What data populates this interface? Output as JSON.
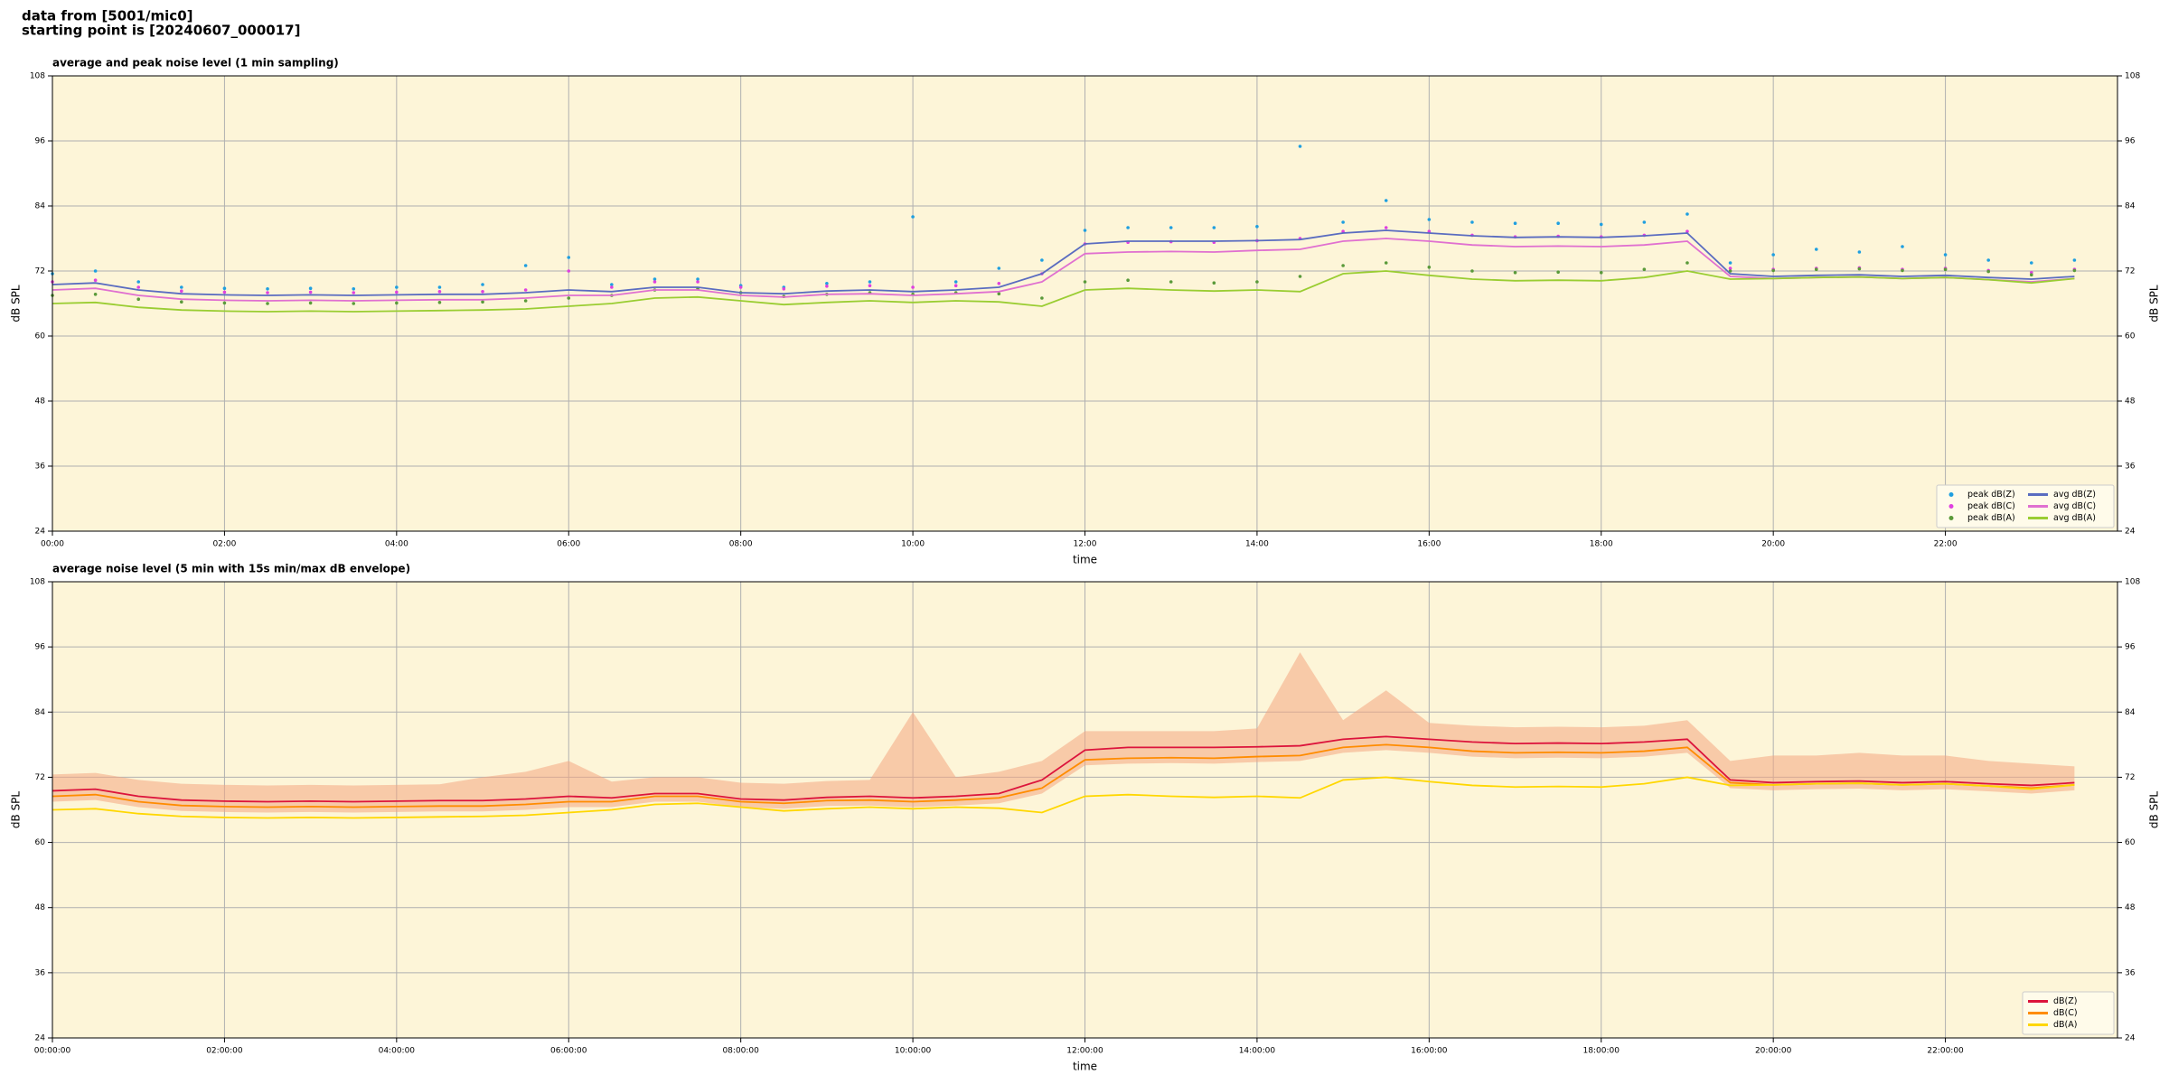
{
  "header": {
    "source": "data from [5001/mic0]",
    "start": "starting point is [20240607_000017]"
  },
  "chart_data": [
    {
      "type": "line",
      "title": "average and peak noise level (1 min sampling)",
      "xlabel": "time",
      "ylabel": "dB SPL",
      "xlim": [
        0,
        24
      ],
      "ylim": [
        24,
        108
      ],
      "xticks": [
        {
          "value": 0,
          "label": "00:00"
        },
        {
          "value": 2,
          "label": "02:00"
        },
        {
          "value": 4,
          "label": "04:00"
        },
        {
          "value": 6,
          "label": "06:00"
        },
        {
          "value": 8,
          "label": "08:00"
        },
        {
          "value": 10,
          "label": "10:00"
        },
        {
          "value": 12,
          "label": "12:00"
        },
        {
          "value": 14,
          "label": "14:00"
        },
        {
          "value": 16,
          "label": "16:00"
        },
        {
          "value": 18,
          "label": "18:00"
        },
        {
          "value": 20,
          "label": "20:00"
        },
        {
          "value": 22,
          "label": "22:00"
        }
      ],
      "yticks": [
        24,
        36,
        48,
        60,
        72,
        84,
        96,
        108
      ],
      "grid": true,
      "legend": "lower right",
      "legend_columns": 2,
      "background": "#fdf5d8",
      "x": [
        0,
        0.5,
        1,
        1.5,
        2,
        2.5,
        3,
        3.5,
        4,
        4.5,
        5,
        5.5,
        6,
        6.5,
        7,
        7.5,
        8,
        8.5,
        9,
        9.5,
        10,
        10.5,
        11,
        11.5,
        12,
        12.5,
        13,
        13.5,
        14,
        14.5,
        15,
        15.5,
        16,
        16.5,
        17,
        17.5,
        18,
        18.5,
        19,
        19.5,
        20,
        20.5,
        21,
        21.5,
        22,
        22.5,
        23,
        23.5
      ],
      "series": [
        {
          "name": "peak dB(Z)",
          "color": "#1f9fe0",
          "mark": "dot",
          "values": [
            71.5,
            72,
            70,
            69,
            68.8,
            68.7,
            68.8,
            68.7,
            69,
            69,
            69.5,
            73,
            74.5,
            69.5,
            70.5,
            70.5,
            69.3,
            69,
            69.7,
            70,
            82,
            70,
            72.5,
            74,
            79.5,
            80,
            80,
            80,
            80.2,
            95,
            81,
            85,
            81.5,
            81,
            80.8,
            80.8,
            80.6,
            81,
            82.5,
            73.5,
            75,
            76,
            75.5,
            76.5,
            75,
            74,
            73.5,
            74
          ]
        },
        {
          "name": "peak dB(C)",
          "color": "#e040e0",
          "mark": "dot",
          "values": [
            70,
            70.3,
            69,
            68.3,
            68.1,
            68,
            68.1,
            68,
            68.1,
            68.2,
            68.2,
            68.5,
            72,
            69,
            70,
            70,
            69,
            68.7,
            69.2,
            69.3,
            69,
            69.3,
            69.7,
            71.5,
            77,
            77.3,
            77.4,
            77.3,
            77.6,
            78,
            79.3,
            80,
            79.3,
            78.6,
            78.3,
            78.4,
            78.3,
            78.6,
            79.3,
            72.5,
            72.3,
            72.5,
            72.6,
            72.3,
            72.5,
            72.1,
            71.7,
            72.3
          ]
        },
        {
          "name": "peak dB(A)",
          "color": "#5a9a3a",
          "mark": "dot",
          "values": [
            67.5,
            67.7,
            66.8,
            66.3,
            66.1,
            66,
            66.1,
            66,
            66.1,
            66.2,
            66.3,
            66.5,
            67,
            67.5,
            68.5,
            68.7,
            68,
            67.3,
            67.7,
            68,
            67.7,
            68,
            67.8,
            67,
            70,
            70.3,
            70,
            69.8,
            70,
            71,
            73,
            73.5,
            72.7,
            72,
            71.7,
            71.8,
            71.7,
            72.3,
            73.5,
            72,
            72.1,
            72.3,
            72.4,
            72.1,
            72.3,
            71.9,
            71.3,
            72.1
          ]
        },
        {
          "name": "avg dB(Z)",
          "color": "#5a6cc0",
          "mark": "line",
          "values": [
            69.5,
            69.8,
            68.5,
            67.8,
            67.6,
            67.5,
            67.6,
            67.5,
            67.6,
            67.7,
            67.7,
            68,
            68.5,
            68.2,
            69,
            69,
            68,
            67.8,
            68.3,
            68.5,
            68.2,
            68.5,
            69,
            71.5,
            77,
            77.5,
            77.5,
            77.5,
            77.6,
            77.8,
            79,
            79.5,
            79,
            78.5,
            78.2,
            78.3,
            78.2,
            78.5,
            79,
            71.5,
            71,
            71.2,
            71.3,
            71,
            71.2,
            70.8,
            70.5,
            71
          ]
        },
        {
          "name": "avg dB(C)",
          "color": "#e070d0",
          "mark": "line",
          "values": [
            68.5,
            68.8,
            67.5,
            66.8,
            66.6,
            66.5,
            66.6,
            66.5,
            66.6,
            66.7,
            66.7,
            67,
            67.5,
            67.5,
            68.5,
            68.5,
            67.5,
            67.2,
            67.7,
            67.8,
            67.5,
            67.8,
            68.2,
            70,
            75.2,
            75.5,
            75.6,
            75.5,
            75.8,
            76,
            77.5,
            78,
            77.5,
            76.8,
            76.5,
            76.6,
            76.5,
            76.8,
            77.5,
            71,
            70.6,
            70.8,
            70.9,
            70.6,
            70.8,
            70.4,
            70,
            70.6
          ]
        },
        {
          "name": "avg dB(A)",
          "color": "#9acd32",
          "mark": "line",
          "values": [
            66,
            66.2,
            65.3,
            64.8,
            64.6,
            64.5,
            64.6,
            64.5,
            64.6,
            64.7,
            64.8,
            65,
            65.5,
            66,
            67,
            67.2,
            66.5,
            65.8,
            66.2,
            66.5,
            66.2,
            66.5,
            66.3,
            65.5,
            68.5,
            68.8,
            68.5,
            68.3,
            68.5,
            68.2,
            71.5,
            72,
            71.2,
            70.5,
            70.2,
            70.3,
            70.2,
            70.8,
            72,
            70.5,
            70.6,
            70.8,
            70.9,
            70.6,
            70.8,
            70.4,
            69.8,
            70.6
          ]
        }
      ]
    },
    {
      "type": "line",
      "title": "average noise level (5 min with 15s min/max dB envelope)",
      "xlabel": "time",
      "ylabel": "dB SPL",
      "xlim": [
        0,
        24
      ],
      "ylim": [
        24,
        108
      ],
      "xticks": [
        {
          "value": 0,
          "label": "00:00:00"
        },
        {
          "value": 2,
          "label": "02:00:00"
        },
        {
          "value": 4,
          "label": "04:00:00"
        },
        {
          "value": 6,
          "label": "06:00:00"
        },
        {
          "value": 8,
          "label": "08:00:00"
        },
        {
          "value": 10,
          "label": "10:00:00"
        },
        {
          "value": 12,
          "label": "12:00:00"
        },
        {
          "value": 14,
          "label": "14:00:00"
        },
        {
          "value": 16,
          "label": "16:00:00"
        },
        {
          "value": 18,
          "label": "18:00:00"
        },
        {
          "value": 20,
          "label": "20:00:00"
        },
        {
          "value": 22,
          "label": "22:00:00"
        }
      ],
      "yticks": [
        24,
        36,
        48,
        60,
        72,
        84,
        96,
        108
      ],
      "grid": true,
      "legend": "lower right",
      "legend_columns": 1,
      "background": "#fdf5d8",
      "x": [
        0,
        0.5,
        1,
        1.5,
        2,
        2.5,
        3,
        3.5,
        4,
        4.5,
        5,
        5.5,
        6,
        6.5,
        7,
        7.5,
        8,
        8.5,
        9,
        9.5,
        10,
        10.5,
        11,
        11.5,
        12,
        12.5,
        13,
        13.5,
        14,
        14.5,
        15,
        15.5,
        16,
        16.5,
        17,
        17.5,
        18,
        18.5,
        19,
        19.5,
        20,
        20.5,
        21,
        21.5,
        22,
        22.5,
        23,
        23.5
      ],
      "band": {
        "color": "#f4a582",
        "upper": [
          72.5,
          72.8,
          71.5,
          70.8,
          70.6,
          70.5,
          70.6,
          70.5,
          70.6,
          70.7,
          72,
          73,
          75,
          71.2,
          72,
          72,
          71,
          70.8,
          71.3,
          71.5,
          84,
          72,
          73,
          75,
          80.5,
          80.5,
          80.5,
          80.5,
          81,
          95,
          82.5,
          88,
          82,
          81.5,
          81.2,
          81.3,
          81.2,
          81.5,
          82.5,
          75,
          76,
          76,
          76.5,
          76,
          76,
          75,
          74.5,
          74
        ],
        "lower": [
          67.5,
          67.8,
          66.5,
          65.8,
          65.6,
          65.5,
          65.6,
          65.5,
          65.6,
          65.7,
          65.7,
          66,
          66.5,
          66.5,
          67.5,
          67.5,
          66.5,
          66.2,
          66.7,
          66.8,
          66.5,
          66.8,
          67.2,
          69,
          74.2,
          74.5,
          74.6,
          74.5,
          74.8,
          75,
          76.5,
          77,
          76.5,
          75.8,
          75.5,
          75.6,
          75.5,
          75.8,
          76.5,
          70,
          69.6,
          69.8,
          69.9,
          69.6,
          69.8,
          69.4,
          69,
          69.6
        ]
      },
      "series": [
        {
          "name": "dB(Z)",
          "color": "#dc143c",
          "mark": "line",
          "values": [
            69.5,
            69.8,
            68.5,
            67.8,
            67.6,
            67.5,
            67.6,
            67.5,
            67.6,
            67.7,
            67.7,
            68,
            68.5,
            68.2,
            69,
            69,
            68,
            67.8,
            68.3,
            68.5,
            68.2,
            68.5,
            69,
            71.5,
            77,
            77.5,
            77.5,
            77.5,
            77.6,
            77.8,
            79,
            79.5,
            79,
            78.5,
            78.2,
            78.3,
            78.2,
            78.5,
            79,
            71.5,
            71,
            71.2,
            71.3,
            71,
            71.2,
            70.8,
            70.5,
            71
          ]
        },
        {
          "name": "dB(C)",
          "color": "#ff8c00",
          "mark": "line",
          "values": [
            68.5,
            68.8,
            67.5,
            66.8,
            66.6,
            66.5,
            66.6,
            66.5,
            66.6,
            66.7,
            66.7,
            67,
            67.5,
            67.5,
            68.5,
            68.5,
            67.5,
            67.2,
            67.7,
            67.8,
            67.5,
            67.8,
            68.2,
            70,
            75.2,
            75.5,
            75.6,
            75.5,
            75.8,
            76,
            77.5,
            78,
            77.5,
            76.8,
            76.5,
            76.6,
            76.5,
            76.8,
            77.5,
            71,
            70.6,
            70.8,
            70.9,
            70.6,
            70.8,
            70.4,
            70,
            70.6
          ]
        },
        {
          "name": "dB(A)",
          "color": "#ffd700",
          "mark": "line",
          "values": [
            66,
            66.2,
            65.3,
            64.8,
            64.6,
            64.5,
            64.6,
            64.5,
            64.6,
            64.7,
            64.8,
            65,
            65.5,
            66,
            67,
            67.2,
            66.5,
            65.8,
            66.2,
            66.5,
            66.2,
            66.5,
            66.3,
            65.5,
            68.5,
            68.8,
            68.5,
            68.3,
            68.5,
            68.2,
            71.5,
            72,
            71.2,
            70.5,
            70.2,
            70.3,
            70.2,
            70.8,
            72,
            70.5,
            70.6,
            70.8,
            70.9,
            70.6,
            70.8,
            70.4,
            69.8,
            70.6
          ]
        }
      ]
    }
  ]
}
